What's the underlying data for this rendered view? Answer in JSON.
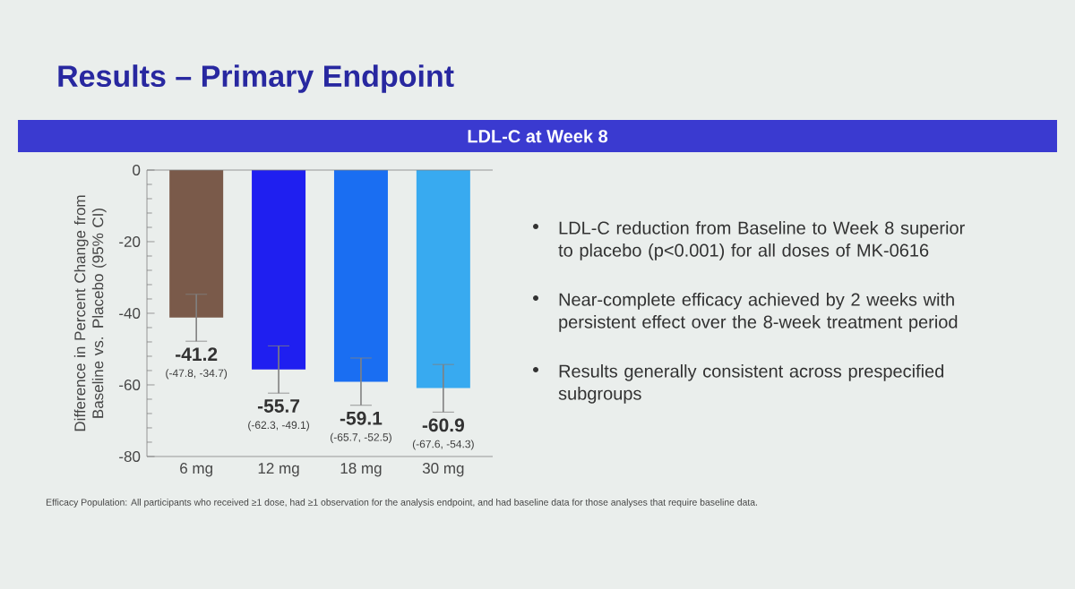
{
  "chart_data": {
    "type": "bar",
    "title": "Results – Primary Endpoint",
    "subtitle": "LDL-C at Week 8",
    "ylabel": "Difference in Percent Change from Baseline vs. Placebo (95% CI)",
    "categories": [
      "6 mg",
      "12 mg",
      "18 mg",
      "30 mg"
    ],
    "values": [
      -41.2,
      -55.7,
      -59.1,
      -60.9
    ],
    "colors": [
      "#7a5a4a",
      "#1f1ff0",
      "#1a6ef2",
      "#38aaf0"
    ],
    "errors": [
      [
        -47.8,
        -34.7
      ],
      [
        -62.3,
        -49.1
      ],
      [
        -65.7,
        -52.5
      ],
      [
        -67.6,
        -54.3
      ]
    ],
    "value_labels": [
      "-41.2",
      "-55.7",
      "-59.1",
      "-60.9"
    ],
    "ylim": [
      -80,
      0
    ],
    "yticks": [
      -80,
      -60,
      -40,
      -20,
      0
    ],
    "annotations": [
      "(-47.8, -34.7)",
      "(-62.3, -49.1)",
      "(-65.7, -52.5)",
      "(-67.6, -54.3)",
      "LDL-C reduction from Baseline to Week 8 superior to placebo (p<0.001) for all doses of MK-0616",
      "Near-complete efficacy achieved by 2 weeks with persistent effect over the 8-week treatment period",
      "Results generally consistent across prespecified subgroups",
      "Efficacy Population: All participants who received ≥1 dose, had ≥1 observation for the analysis endpoint, and had baseline data for those analyses that require baseline data."
    ]
  }
}
